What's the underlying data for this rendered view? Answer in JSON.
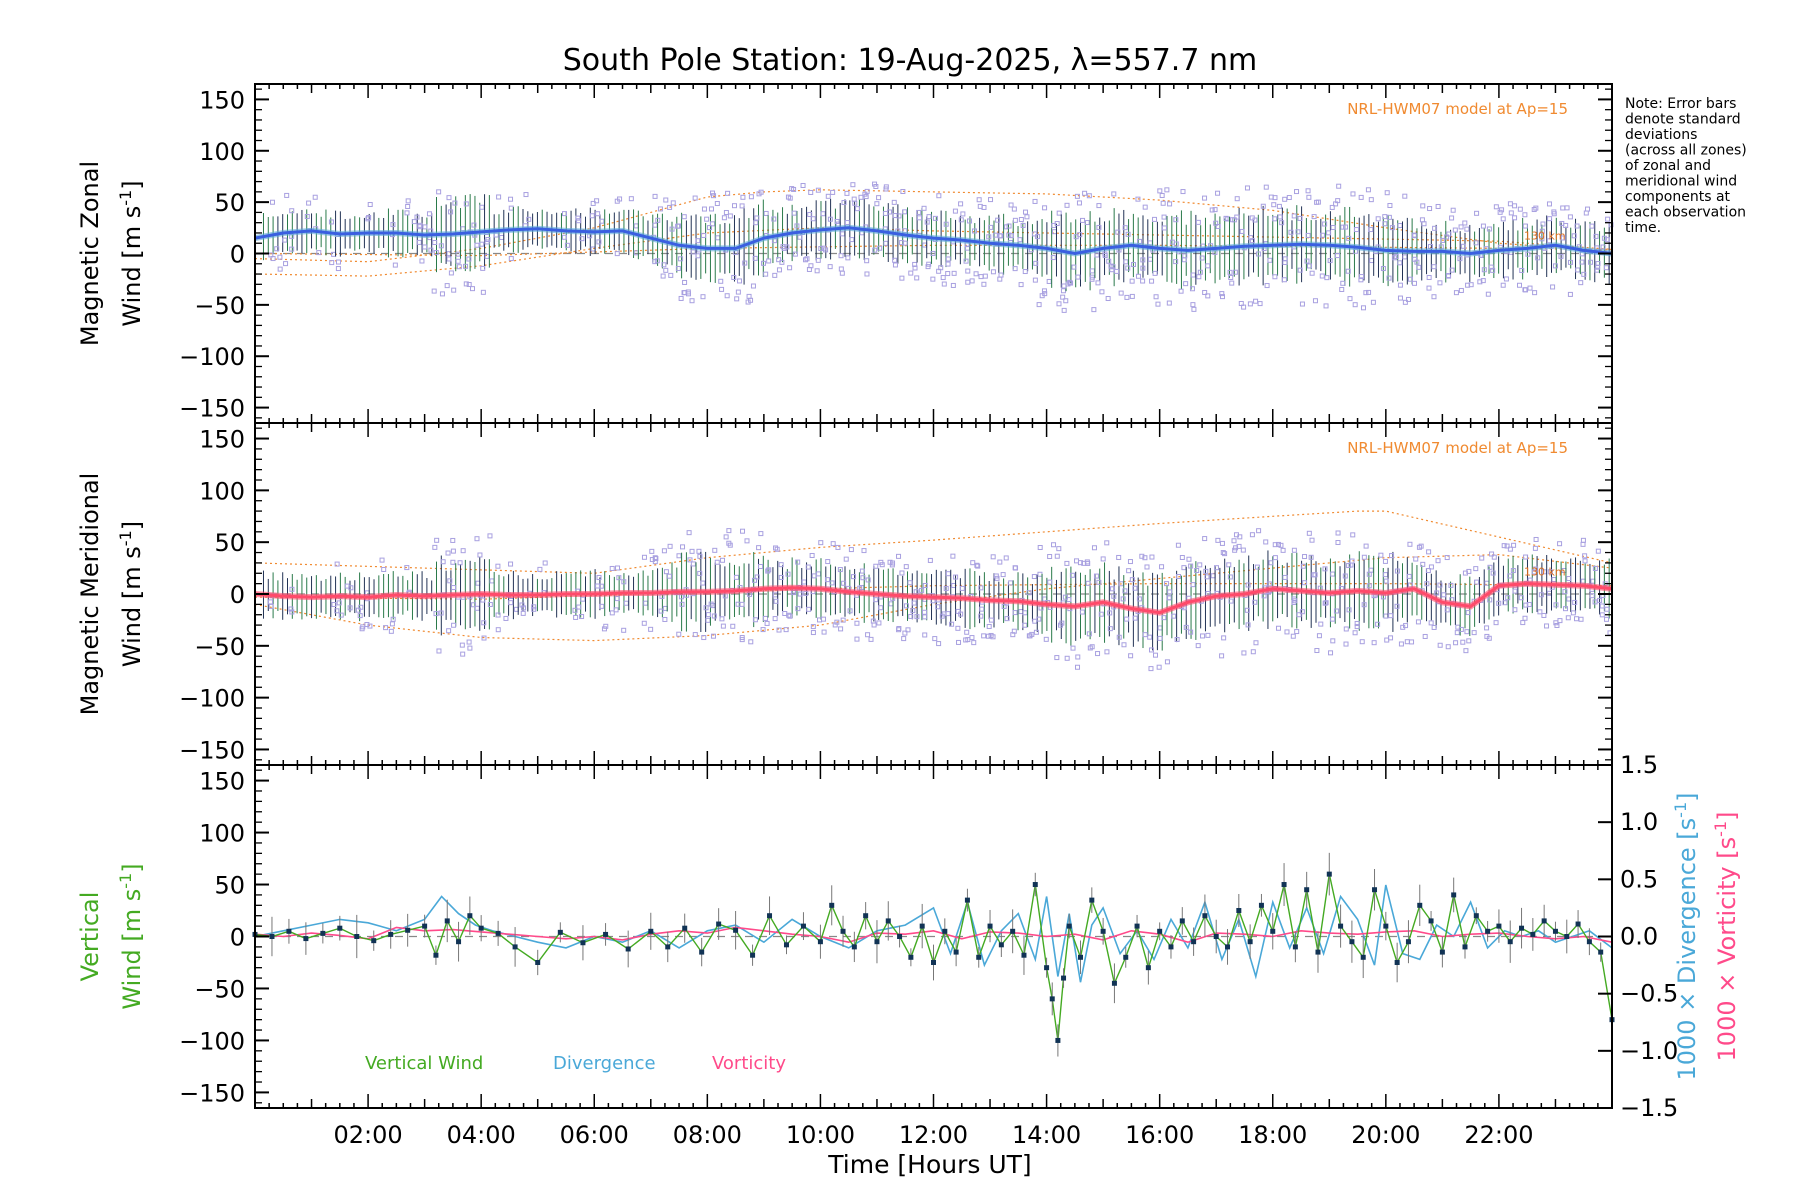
{
  "chart_data": {
    "title": "South Pole Station: 19-Aug-2025, λ=557.7 nm",
    "xlabel": "Time [Hours UT]",
    "xlim": [
      0,
      24
    ],
    "xticks": [
      {
        "v": 2,
        "label": "02:00"
      },
      {
        "v": 4,
        "label": "04:00"
      },
      {
        "v": 6,
        "label": "06:00"
      },
      {
        "v": 8,
        "label": "08:00"
      },
      {
        "v": 10,
        "label": "10:00"
      },
      {
        "v": 12,
        "label": "12:00"
      },
      {
        "v": 14,
        "label": "14:00"
      },
      {
        "v": 16,
        "label": "16:00"
      },
      {
        "v": 18,
        "label": "18:00"
      },
      {
        "v": 20,
        "label": "20:00"
      },
      {
        "v": 22,
        "label": "22:00"
      }
    ],
    "yticks": [
      "150",
      "100",
      "50",
      "0",
      "−50",
      "−100",
      "−150"
    ],
    "right_yticks": [
      "1.5",
      "1.0",
      "0.5",
      "0.0",
      "−0.5",
      "−1.0",
      "−1.5"
    ],
    "note": [
      "Note: Error bars",
      "denote standard",
      "deviations",
      "(across all zones)",
      "of zonal and",
      "meridional wind",
      "components at",
      "each observation",
      "time."
    ],
    "panels": [
      {
        "type": "line",
        "ylabel_line1": "Magnetic Zonal",
        "ylabel_line2": "Wind [m s",
        "ylabel_sup": "-1",
        "ylabel_close": "]",
        "ylim": [
          -165,
          165
        ],
        "model_label": "NRL-HWM07 model at Ap=15",
        "height_label": "130 km",
        "mean_color": "#3a5fe0",
        "smooth_color": "#5aa8d8",
        "series": [
          {
            "name": "mean zonal wind",
            "x": [
              0.0,
              0.5,
              1.0,
              1.5,
              2.0,
              2.5,
              3.0,
              3.5,
              4.0,
              4.5,
              5.0,
              5.5,
              6.0,
              6.5,
              7.0,
              7.5,
              8.0,
              8.5,
              9.0,
              9.5,
              10.0,
              10.5,
              11.0,
              11.5,
              12.0,
              12.5,
              13.0,
              13.5,
              14.0,
              14.5,
              15.0,
              15.5,
              16.0,
              16.5,
              17.0,
              17.5,
              18.0,
              18.5,
              19.0,
              19.5,
              20.0,
              20.5,
              21.0,
              21.5,
              22.0,
              22.5,
              23.0,
              23.5,
              24.0
            ],
            "y": [
              15,
              20,
              22,
              19,
              20,
              20,
              18,
              19,
              21,
              23,
              24,
              22,
              21,
              22,
              15,
              8,
              5,
              5,
              15,
              20,
              23,
              25,
              22,
              18,
              15,
              13,
              10,
              8,
              5,
              0,
              5,
              8,
              5,
              3,
              5,
              7,
              8,
              9,
              8,
              6,
              3,
              2,
              2,
              0,
              3,
              5,
              8,
              3,
              0
            ]
          }
        ],
        "model_curves": [
          {
            "name": "model upper",
            "x": [
              0,
              2,
              4,
              6,
              8,
              9,
              10,
              12,
              14,
              16,
              18,
              20,
              22,
              24
            ],
            "y": [
              -5,
              -8,
              5,
              25,
              55,
              60,
              62,
              60,
              58,
              52,
              42,
              25,
              10,
              2
            ]
          },
          {
            "name": "model lower",
            "x": [
              0,
              2,
              4,
              6,
              8,
              10,
              12,
              14,
              16,
              18,
              20,
              22,
              24
            ],
            "y": [
              -20,
              -22,
              -12,
              5,
              20,
              25,
              22,
              20,
              18,
              16,
              14,
              12,
              4
            ]
          },
          {
            "name": "model 130 km",
            "x": [
              0,
              4,
              8,
              12,
              16,
              20,
              24
            ],
            "y": [
              0,
              -2,
              5,
              8,
              8,
              6,
              4
            ]
          }
        ],
        "error_bar_half_width": 30,
        "scatter_spread": 35,
        "band_text": ""
      },
      {
        "type": "line",
        "ylabel_line1": "Magnetic Meridional",
        "ylabel_line2": "Wind [m s",
        "ylabel_sup": "-1",
        "ylabel_close": "]",
        "ylim": [
          -165,
          165
        ],
        "model_label": "NRL-HWM07 model at Ap=15",
        "height_label": "130 km",
        "mean_color": "#ff4a6a",
        "smooth_color": "#ff4a6a",
        "series": [
          {
            "name": "mean meridional wind",
            "x": [
              0.0,
              0.5,
              1.0,
              1.5,
              2.0,
              2.5,
              3.0,
              3.5,
              4.0,
              4.5,
              5.0,
              5.5,
              6.0,
              6.5,
              7.0,
              7.5,
              8.0,
              8.5,
              9.0,
              9.5,
              10.0,
              10.5,
              11.0,
              11.5,
              12.0,
              12.5,
              13.0,
              13.5,
              14.0,
              14.5,
              15.0,
              15.5,
              16.0,
              16.5,
              17.0,
              17.5,
              18.0,
              18.5,
              19.0,
              19.5,
              20.0,
              20.5,
              21.0,
              21.5,
              22.0,
              22.5,
              23.0,
              23.5,
              24.0
            ],
            "y": [
              0,
              -2,
              -3,
              -2,
              -3,
              -1,
              -2,
              -1,
              0,
              -1,
              -1,
              0,
              0,
              1,
              1,
              2,
              2,
              3,
              5,
              6,
              5,
              2,
              0,
              -2,
              -3,
              -4,
              -6,
              -7,
              -10,
              -12,
              -8,
              -14,
              -18,
              -8,
              -2,
              0,
              5,
              3,
              1,
              3,
              1,
              5,
              -8,
              -12,
              8,
              10,
              9,
              8,
              5
            ]
          }
        ],
        "model_curves": [
          {
            "name": "model upper",
            "x": [
              0,
              3,
              6,
              8,
              10,
              12,
              14,
              16,
              18,
              19.5,
              20,
              22,
              24
            ],
            "y": [
              30,
              25,
              20,
              35,
              45,
              52,
              60,
              68,
              75,
              80,
              80,
              55,
              30
            ]
          },
          {
            "name": "model lower",
            "x": [
              0,
              2,
              4,
              6,
              8,
              10,
              12,
              14,
              16,
              18,
              20,
              22,
              24
            ],
            "y": [
              -10,
              -30,
              -42,
              -45,
              -40,
              -30,
              -10,
              5,
              15,
              25,
              35,
              38,
              25
            ]
          },
          {
            "name": "model 130 km",
            "x": [
              0,
              4,
              8,
              12,
              16,
              20,
              24
            ],
            "y": [
              -3,
              -5,
              2,
              8,
              10,
              10,
              8
            ]
          }
        ],
        "error_bar_half_width": 30,
        "scatter_spread": 35,
        "band_text": ""
      },
      {
        "type": "line",
        "ylabel_line1": "Vertical",
        "ylabel_line2": "Wind [m s",
        "ylabel_sup": "-1",
        "ylabel_close": "]",
        "ylim": [
          -165,
          165
        ],
        "right_ylabel_div": "1000 × Divergence [s",
        "right_ylabel_vor": "1000 × Vorticity [s",
        "right_ylim": [
          -1.5,
          1.5
        ],
        "legend": [
          {
            "label": "Vertical Wind",
            "color": "#44aa22"
          },
          {
            "label": "Divergence",
            "color": "#4aa8d8"
          },
          {
            "label": "Vorticity",
            "color": "#ff4a8a"
          }
        ],
        "series": [
          {
            "name": "Vertical Wind",
            "color": "#44aa22",
            "x": [
              0.0,
              0.3,
              0.6,
              0.9,
              1.2,
              1.5,
              1.8,
              2.1,
              2.4,
              2.7,
              3.0,
              3.2,
              3.4,
              3.6,
              3.8,
              4.0,
              4.3,
              4.6,
              5.0,
              5.4,
              5.8,
              6.2,
              6.6,
              7.0,
              7.3,
              7.6,
              7.9,
              8.2,
              8.5,
              8.8,
              9.1,
              9.4,
              9.7,
              10.0,
              10.2,
              10.4,
              10.6,
              10.8,
              11.0,
              11.2,
              11.4,
              11.6,
              11.8,
              12.0,
              12.2,
              12.4,
              12.6,
              12.8,
              13.0,
              13.2,
              13.4,
              13.6,
              13.8,
              14.0,
              14.1,
              14.2,
              14.3,
              14.4,
              14.6,
              14.8,
              15.0,
              15.2,
              15.4,
              15.6,
              15.8,
              16.0,
              16.2,
              16.4,
              16.6,
              16.8,
              17.0,
              17.2,
              17.4,
              17.6,
              17.8,
              18.0,
              18.2,
              18.4,
              18.6,
              18.8,
              19.0,
              19.2,
              19.4,
              19.6,
              19.8,
              20.0,
              20.2,
              20.4,
              20.6,
              20.8,
              21.0,
              21.2,
              21.4,
              21.6,
              21.8,
              22.0,
              22.2,
              22.4,
              22.6,
              22.8,
              23.0,
              23.2,
              23.4,
              23.6,
              23.8,
              24.0
            ],
            "y": [
              2,
              0,
              5,
              -2,
              3,
              8,
              0,
              -4,
              2,
              6,
              10,
              -18,
              15,
              -5,
              20,
              8,
              3,
              -10,
              -25,
              4,
              -6,
              2,
              -12,
              5,
              -10,
              8,
              -15,
              12,
              6,
              -18,
              20,
              -8,
              10,
              -5,
              30,
              5,
              -10,
              20,
              -5,
              15,
              0,
              -20,
              10,
              -25,
              5,
              -15,
              35,
              -20,
              10,
              -8,
              5,
              -18,
              50,
              -30,
              -60,
              -100,
              -40,
              10,
              -20,
              35,
              5,
              -45,
              -20,
              10,
              -30,
              5,
              -10,
              15,
              -5,
              20,
              0,
              -10,
              25,
              -5,
              30,
              5,
              50,
              -10,
              45,
              -15,
              60,
              10,
              -5,
              -20,
              45,
              10,
              -25,
              -5,
              30,
              15,
              -15,
              40,
              -10,
              20,
              5,
              10,
              -5,
              8,
              2,
              15,
              5,
              0,
              12,
              -5,
              -15,
              -80
            ]
          },
          {
            "name": "Divergence",
            "color": "#4aa8d8",
            "axis": "right",
            "x": [
              0.0,
              0.5,
              1.0,
              1.5,
              2.0,
              2.5,
              3.0,
              3.3,
              3.6,
              3.9,
              4.2,
              4.6,
              5.0,
              5.5,
              6.0,
              6.5,
              7.0,
              7.5,
              8.0,
              8.5,
              9.0,
              9.5,
              10.0,
              10.5,
              11.0,
              11.5,
              12.0,
              12.3,
              12.6,
              12.9,
              13.2,
              13.5,
              13.8,
              14.0,
              14.2,
              14.4,
              14.6,
              14.8,
              15.0,
              15.3,
              15.6,
              15.9,
              16.2,
              16.5,
              16.8,
              17.1,
              17.4,
              17.7,
              18.0,
              18.3,
              18.6,
              18.9,
              19.2,
              19.5,
              19.8,
              20.0,
              20.3,
              20.6,
              20.9,
              21.2,
              21.5,
              21.8,
              22.1,
              22.4,
              22.7,
              23.0,
              23.3,
              23.6,
              24.0
            ],
            "y": [
              0.0,
              0.05,
              0.1,
              0.15,
              0.12,
              0.05,
              0.15,
              0.35,
              0.2,
              0.1,
              0.05,
              0.0,
              -0.05,
              -0.1,
              0.0,
              -0.05,
              0.05,
              -0.1,
              0.05,
              0.1,
              -0.05,
              0.15,
              0.0,
              -0.1,
              0.05,
              0.1,
              0.25,
              -0.15,
              0.3,
              -0.25,
              0.05,
              0.2,
              -0.2,
              0.35,
              -0.35,
              0.2,
              -0.4,
              0.1,
              0.25,
              -0.15,
              0.05,
              -0.2,
              0.15,
              -0.1,
              0.3,
              -0.2,
              0.15,
              -0.35,
              0.3,
              -0.1,
              0.25,
              -0.15,
              0.35,
              0.15,
              -0.25,
              0.45,
              -0.15,
              -0.2,
              0.1,
              0.0,
              0.3,
              -0.1,
              0.05,
              0.0,
              0.05,
              -0.05,
              0.0,
              0.05,
              -0.1
            ]
          },
          {
            "name": "Vorticity",
            "color": "#ff4a8a",
            "axis": "right",
            "x": [
              0.0,
              0.5,
              1.0,
              1.5,
              2.0,
              2.5,
              3.0,
              3.5,
              4.0,
              4.5,
              5.0,
              5.5,
              6.0,
              6.5,
              7.0,
              7.5,
              8.0,
              8.5,
              9.0,
              9.5,
              10.0,
              10.5,
              11.0,
              11.5,
              12.0,
              12.5,
              13.0,
              13.5,
              14.0,
              14.5,
              15.0,
              15.5,
              16.0,
              16.5,
              17.0,
              17.5,
              18.0,
              18.5,
              19.0,
              19.5,
              20.0,
              20.5,
              21.0,
              21.5,
              22.0,
              22.5,
              23.0,
              23.5,
              24.0
            ],
            "y": [
              0.02,
              0.0,
              0.03,
              0.01,
              -0.02,
              0.08,
              0.05,
              0.06,
              0.04,
              0.02,
              0.0,
              -0.02,
              0.0,
              -0.03,
              0.02,
              0.05,
              0.03,
              0.08,
              0.05,
              0.02,
              0.0,
              -0.05,
              0.03,
              0.02,
              0.05,
              -0.02,
              0.04,
              0.03,
              0.0,
              0.02,
              -0.03,
              0.05,
              0.02,
              -0.05,
              0.03,
              0.02,
              0.0,
              0.05,
              0.03,
              0.02,
              0.04,
              0.05,
              0.0,
              0.02,
              0.03,
              0.0,
              -0.02,
              0.0,
              -0.05
            ]
          }
        ]
      }
    ]
  }
}
